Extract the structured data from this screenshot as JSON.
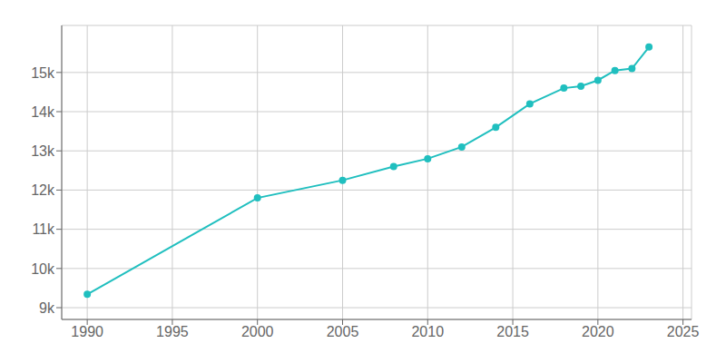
{
  "chart_data": {
    "type": "line",
    "x": [
      1990,
      2000,
      2005,
      2008,
      2010,
      2012,
      2014,
      2016,
      2018,
      2019,
      2020,
      2021,
      2022,
      2023
    ],
    "values": [
      9340,
      11800,
      12250,
      12600,
      12800,
      13100,
      13600,
      14200,
      14600,
      14650,
      14800,
      15050,
      15100,
      15650
    ],
    "color": "#20BFBF",
    "marker": "circle",
    "xlim": [
      1988.5,
      2025.5
    ],
    "ylim": [
      8700,
      16200
    ],
    "xticks": [
      1990,
      1995,
      2000,
      2005,
      2010,
      2015,
      2020,
      2025
    ],
    "yticks": [
      {
        "value": 9000,
        "label": "9k"
      },
      {
        "value": 10000,
        "label": "10k"
      },
      {
        "value": 11000,
        "label": "11k"
      },
      {
        "value": 12000,
        "label": "12k"
      },
      {
        "value": 13000,
        "label": "13k"
      },
      {
        "value": 14000,
        "label": "14k"
      },
      {
        "value": 15000,
        "label": "15k"
      }
    ],
    "grid": true
  }
}
